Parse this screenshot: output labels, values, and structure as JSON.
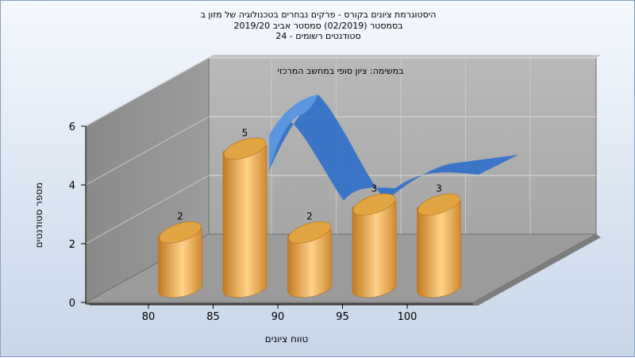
{
  "chart_data": {
    "type": "bar",
    "title_lines": [
      "היסטוגרמת ציונים בקורס - פרקים נבחרים בטכנולוגיה של מזון ב",
      "בסמסטר   (02/2019)  סמסטר אביב 2019/20",
      "סטודנטים רשומים - 24"
    ],
    "subtitle": "במשימה: ציון סופי במחשב המרכזי",
    "xlabel": "טווח ציונים",
    "ylabel": "מספר סטודנטים",
    "x_ticks": [
      "80",
      "85",
      "90",
      "95",
      "100"
    ],
    "y_ticks": [
      "0",
      "2",
      "4",
      "6"
    ],
    "ylim": [
      0,
      6
    ],
    "categories": [
      "80",
      "85",
      "90",
      "95",
      "100"
    ],
    "series": [
      {
        "values": [
          2,
          5,
          2,
          3,
          3
        ]
      }
    ],
    "data_labels": [
      "2",
      "5",
      "2",
      "3",
      "3"
    ],
    "colors": {
      "bar": "#e8a84a",
      "curve": "#2f6fc9",
      "wall": "#a8a8a8",
      "floor": "#9a9a9a"
    },
    "grid": true
  }
}
